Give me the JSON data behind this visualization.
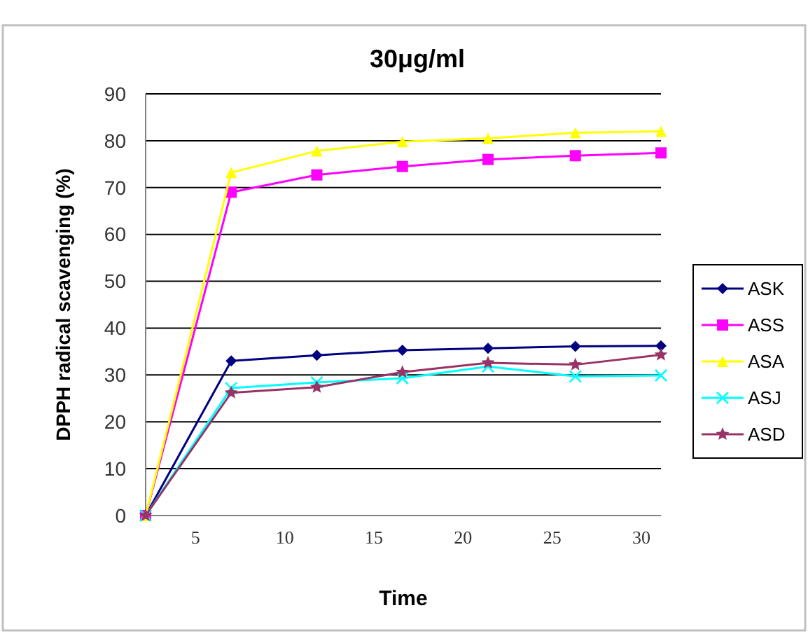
{
  "chart_data": {
    "type": "line",
    "title": "30μg/ml",
    "xlabel": "Time",
    "ylabel": "DPPH radical scavenging (%)",
    "x": [
      2.2,
      7,
      11.8,
      16.6,
      21.4,
      26.3,
      31.1
    ],
    "xlim": [
      2.2,
      31.1
    ],
    "xticks": [
      5,
      10,
      15,
      20,
      25,
      30
    ],
    "ylim": [
      0,
      90
    ],
    "yticks": [
      0,
      10,
      20,
      30,
      40,
      50,
      60,
      70,
      80,
      90
    ],
    "grid": "y",
    "legend": "right",
    "series": [
      {
        "name": "ASK",
        "color": "#000080",
        "marker": "diamond",
        "values": [
          0,
          33,
          34.2,
          35.3,
          35.7,
          36.1,
          36.2
        ]
      },
      {
        "name": "ASS",
        "color": "#ff00ff",
        "marker": "square",
        "values": [
          0,
          69,
          72.7,
          74.5,
          76,
          76.8,
          77.4
        ]
      },
      {
        "name": "ASA",
        "color": "#ffff00",
        "marker": "triangle",
        "values": [
          0,
          73.2,
          77.8,
          79.8,
          80.5,
          81.7,
          82
        ]
      },
      {
        "name": "ASJ",
        "color": "#00ffff",
        "marker": "cross",
        "values": [
          0,
          27.2,
          28.4,
          29.3,
          31.8,
          29.7,
          29.9
        ]
      },
      {
        "name": "ASD",
        "color": "#993366",
        "marker": "star",
        "values": [
          0,
          26.2,
          27.4,
          30.6,
          32.6,
          32.2,
          34.3
        ]
      }
    ]
  }
}
